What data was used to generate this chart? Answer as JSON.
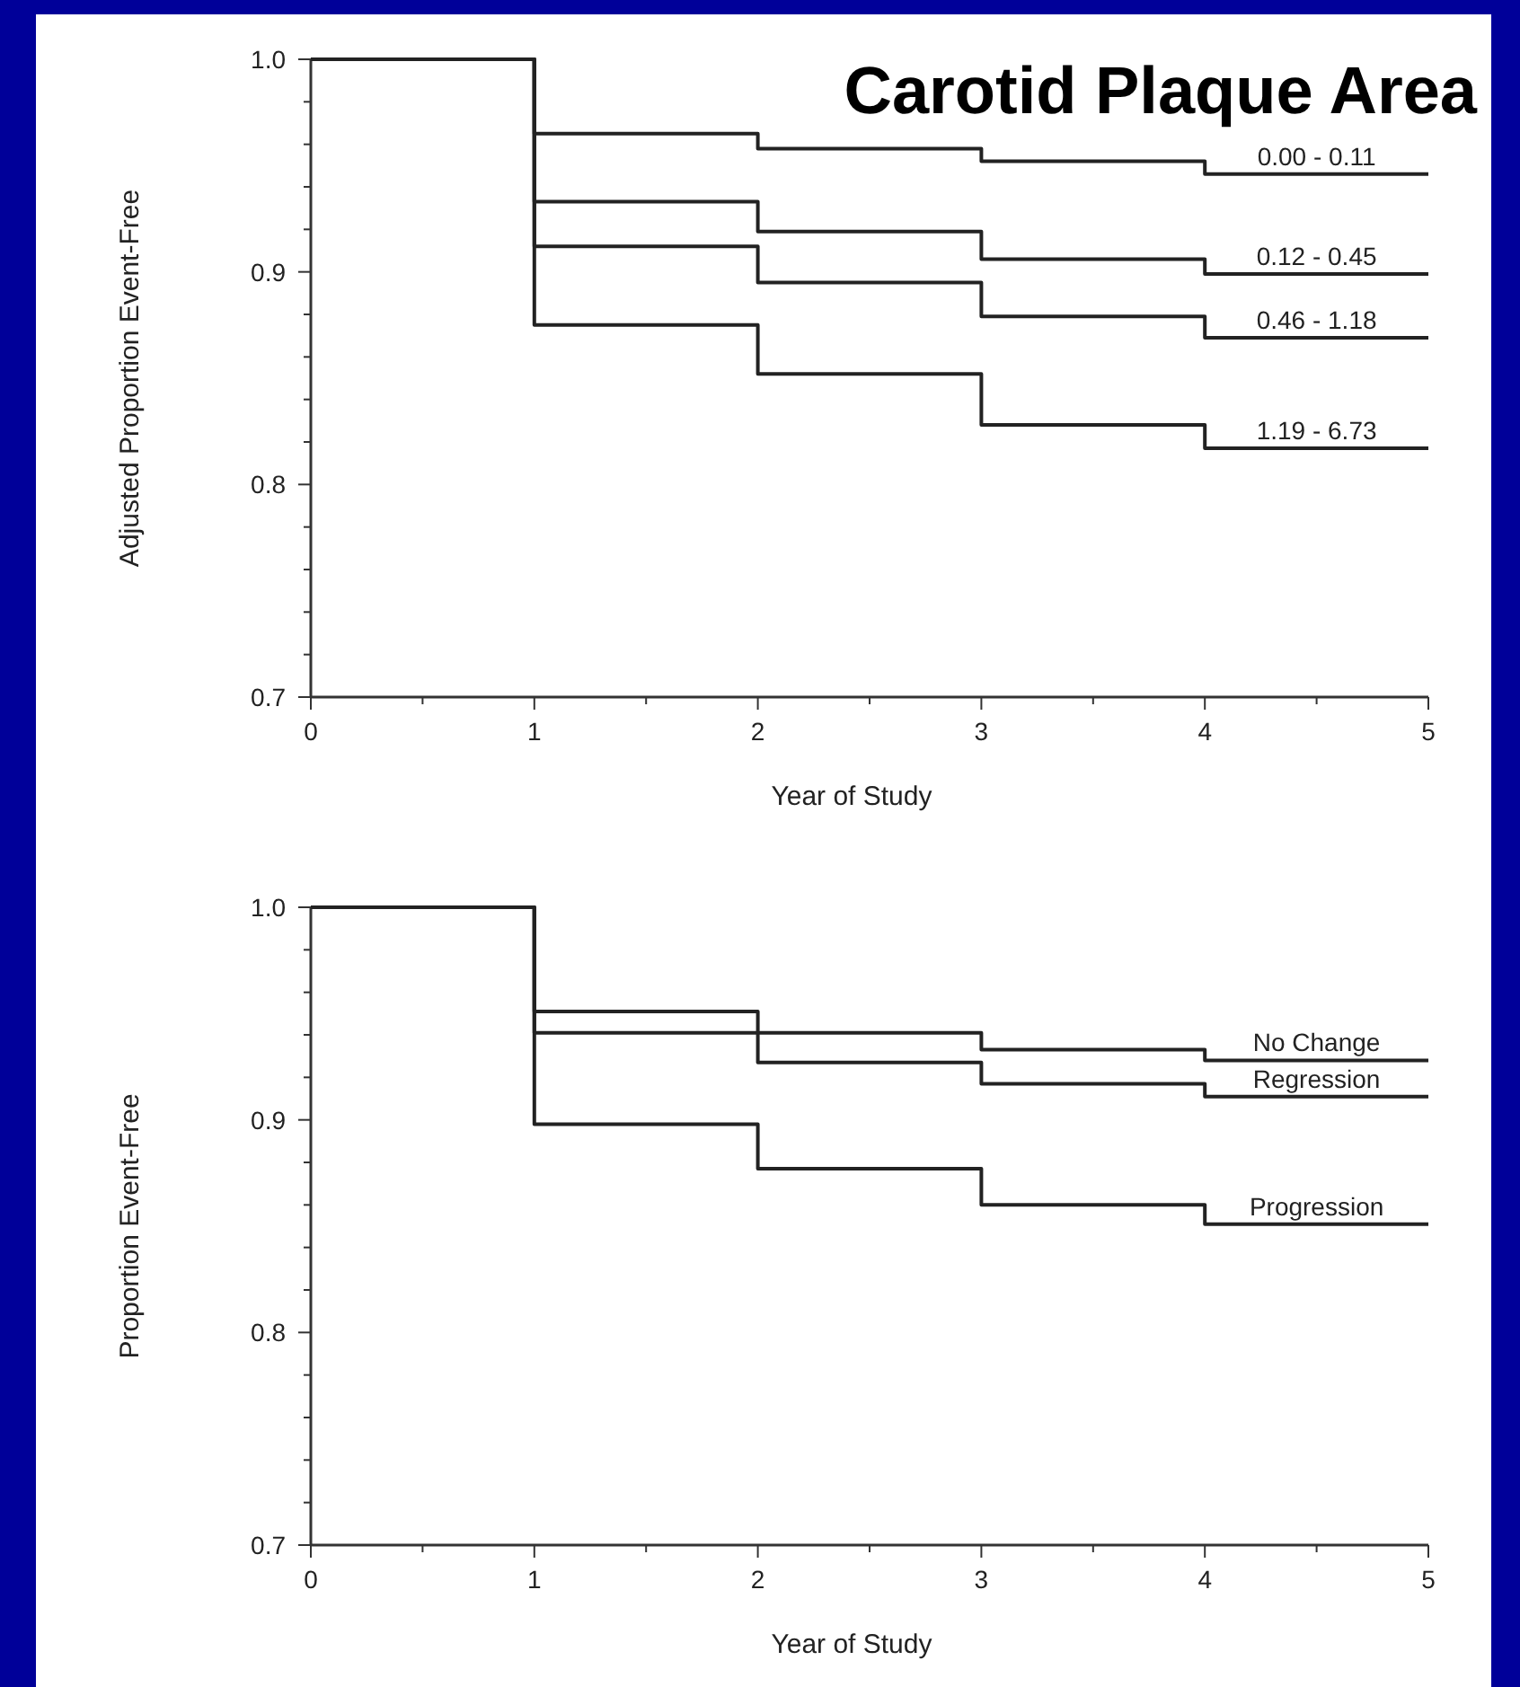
{
  "chart_data": [
    {
      "type": "step",
      "title": "Carotid Plaque Area",
      "xlabel": "Year of Study",
      "ylabel": "Adjusted Proportion Event-Free",
      "x": [
        0,
        1,
        2,
        3,
        4,
        5
      ],
      "xlim": [
        0,
        5
      ],
      "ylim": [
        0.7,
        1.0
      ],
      "xticks": [
        0,
        {
          "value": 0.5,
          "label": null
        },
        1,
        {
          "value": 1.5,
          "label": null
        },
        2,
        {
          "value": 2.5,
          "label": null
        },
        3,
        {
          "value": 3.5,
          "label": null
        },
        4,
        {
          "value": 4.5,
          "label": null
        },
        5
      ],
      "yticks": [
        0.7,
        {
          "value": 0.72,
          "label": null
        },
        {
          "value": 0.74,
          "label": null
        },
        {
          "value": 0.76,
          "label": null
        },
        {
          "value": 0.78,
          "label": null
        },
        0.8,
        {
          "value": 0.82,
          "label": null
        },
        {
          "value": 0.84,
          "label": null
        },
        {
          "value": 0.86,
          "label": null
        },
        {
          "value": 0.88,
          "label": null
        },
        0.9,
        {
          "value": 0.92,
          "label": null
        },
        {
          "value": 0.94,
          "label": null
        },
        {
          "value": 0.96,
          "label": null
        },
        {
          "value": 0.98,
          "label": null
        },
        {
          "value": 1.0,
          "label": "1.0"
        }
      ],
      "series": [
        {
          "name": "0.00 - 0.11",
          "color": "#222222",
          "values": [
            1.0,
            0.965,
            0.958,
            0.952,
            0.946,
            0.946
          ]
        },
        {
          "name": "0.12 - 0.45",
          "color": "#222222",
          "values": [
            1.0,
            0.933,
            0.919,
            0.906,
            0.899,
            0.899
          ]
        },
        {
          "name": "0.46 - 1.18",
          "color": "#222222",
          "values": [
            1.0,
            0.912,
            0.895,
            0.879,
            0.869,
            0.869
          ]
        },
        {
          "name": "1.19 - 6.73",
          "color": "#222222",
          "values": [
            1.0,
            0.875,
            0.852,
            0.828,
            0.817,
            0.817
          ]
        }
      ]
    },
    {
      "type": "step",
      "xlabel": "Year of Study",
      "ylabel": "Proportion Event-Free",
      "x": [
        0,
        1,
        2,
        3,
        4,
        5
      ],
      "xlim": [
        0,
        5
      ],
      "ylim": [
        0.7,
        1.0
      ],
      "xticks": [
        0,
        {
          "value": 0.5,
          "label": null
        },
        1,
        {
          "value": 1.5,
          "label": null
        },
        2,
        {
          "value": 2.5,
          "label": null
        },
        3,
        {
          "value": 3.5,
          "label": null
        },
        4,
        {
          "value": 4.5,
          "label": null
        },
        5
      ],
      "yticks": [
        0.7,
        {
          "value": 0.72,
          "label": null
        },
        {
          "value": 0.74,
          "label": null
        },
        {
          "value": 0.76,
          "label": null
        },
        {
          "value": 0.78,
          "label": null
        },
        0.8,
        {
          "value": 0.82,
          "label": null
        },
        {
          "value": 0.84,
          "label": null
        },
        {
          "value": 0.86,
          "label": null
        },
        {
          "value": 0.88,
          "label": null
        },
        0.9,
        {
          "value": 0.92,
          "label": null
        },
        {
          "value": 0.94,
          "label": null
        },
        {
          "value": 0.96,
          "label": null
        },
        {
          "value": 0.98,
          "label": null
        },
        {
          "value": 1.0,
          "label": "1.0"
        }
      ],
      "series": [
        {
          "name": "No Change",
          "color": "#222222",
          "values": [
            1.0,
            0.941,
            0.941,
            0.933,
            0.928,
            0.928
          ]
        },
        {
          "name": "Regression",
          "color": "#222222",
          "values": [
            1.0,
            0.951,
            0.927,
            0.917,
            0.911,
            0.911
          ]
        },
        {
          "name": "Progression",
          "color": "#222222",
          "values": [
            1.0,
            0.898,
            0.877,
            0.86,
            0.851,
            0.851
          ]
        }
      ]
    }
  ]
}
